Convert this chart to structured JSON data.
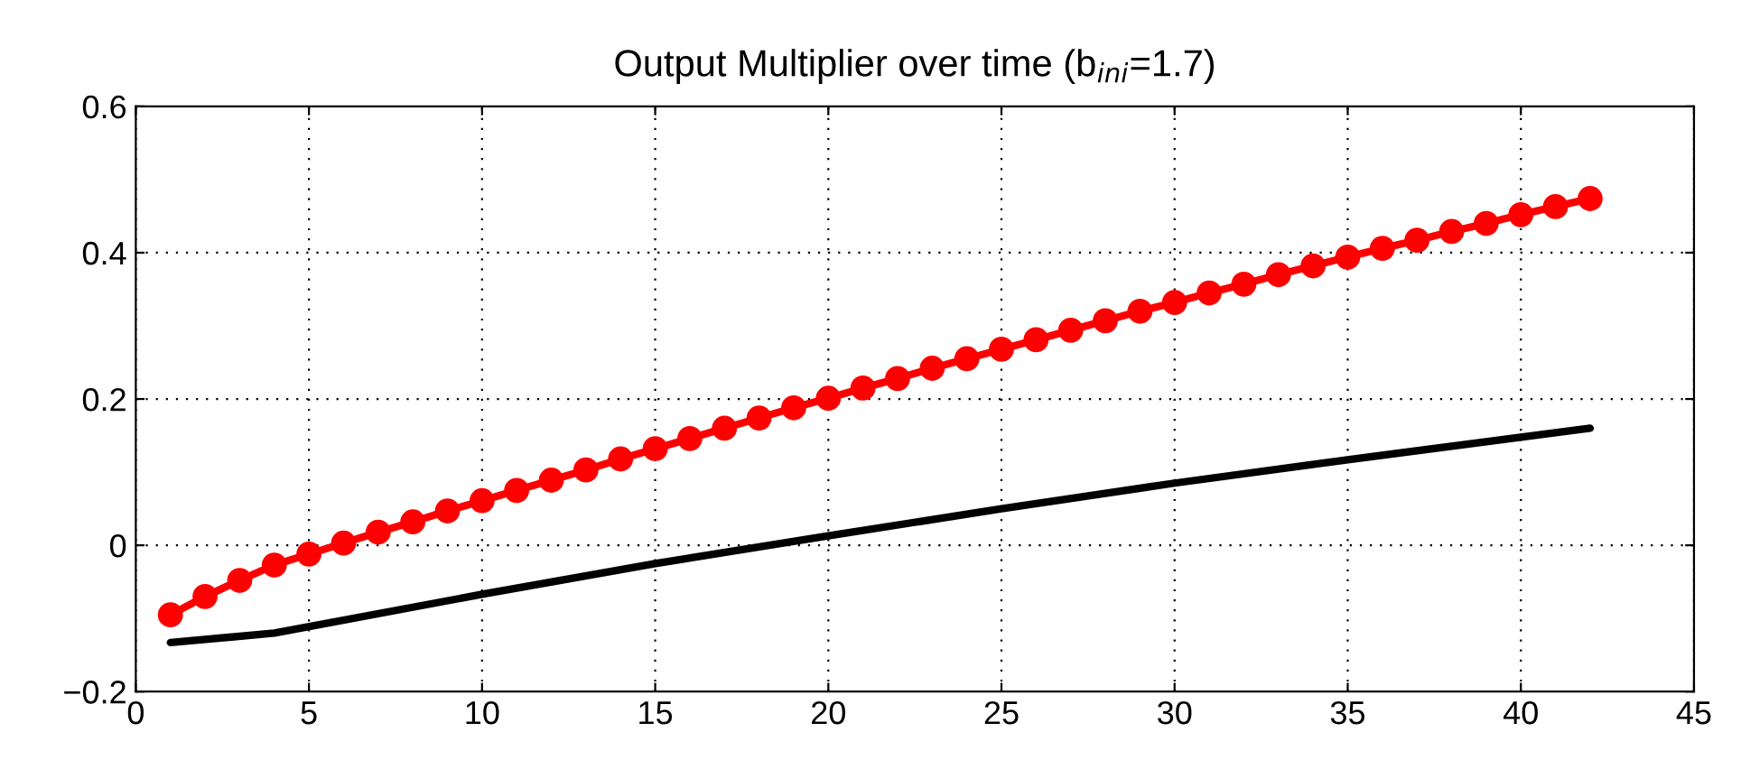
{
  "chart_data": {
    "type": "line",
    "title": "Output Multiplier over time (b$_{ini}$=1.7)",
    "xlim": [
      0,
      45
    ],
    "xticks": [
      0,
      5,
      10,
      15,
      20,
      25,
      30,
      35,
      40,
      45
    ],
    "ylim": [
      -0.2,
      0.6
    ],
    "yticks": [
      {
        "value": -0.2,
        "label": "−0.2"
      },
      0,
      0.2,
      0.4,
      0.6
    ],
    "grid": true,
    "line_style": "solid",
    "series": [
      {
        "color": "#ff0000",
        "marker": "circle",
        "x": [
          1,
          2,
          3,
          4,
          5,
          6,
          7,
          8,
          9,
          10,
          11,
          12,
          13,
          14,
          15,
          16,
          17,
          18,
          19,
          20,
          21,
          22,
          23,
          24,
          25,
          26,
          27,
          28,
          29,
          30,
          31,
          32,
          33,
          34,
          35,
          36,
          37,
          38,
          39,
          40,
          41,
          42
        ],
        "values": [
          -0.095,
          -0.07,
          -0.048,
          -0.027,
          -0.012,
          0.003,
          0.018,
          0.032,
          0.047,
          0.061,
          0.075,
          0.089,
          0.103,
          0.118,
          0.132,
          0.146,
          0.16,
          0.174,
          0.188,
          0.201,
          0.215,
          0.228,
          0.242,
          0.255,
          0.268,
          0.281,
          0.294,
          0.307,
          0.32,
          0.332,
          0.345,
          0.357,
          0.37,
          0.382,
          0.394,
          0.406,
          0.417,
          0.429,
          0.44,
          0.452,
          0.463,
          0.474
        ]
      },
      {
        "color": "#000000",
        "marker": "none",
        "x": [
          1,
          4,
          10,
          15,
          20,
          25,
          30,
          35,
          42
        ],
        "values": [
          -0.133,
          -0.12,
          -0.067,
          -0.025,
          0.013,
          0.05,
          0.085,
          0.117,
          0.16
        ]
      }
    ]
  }
}
